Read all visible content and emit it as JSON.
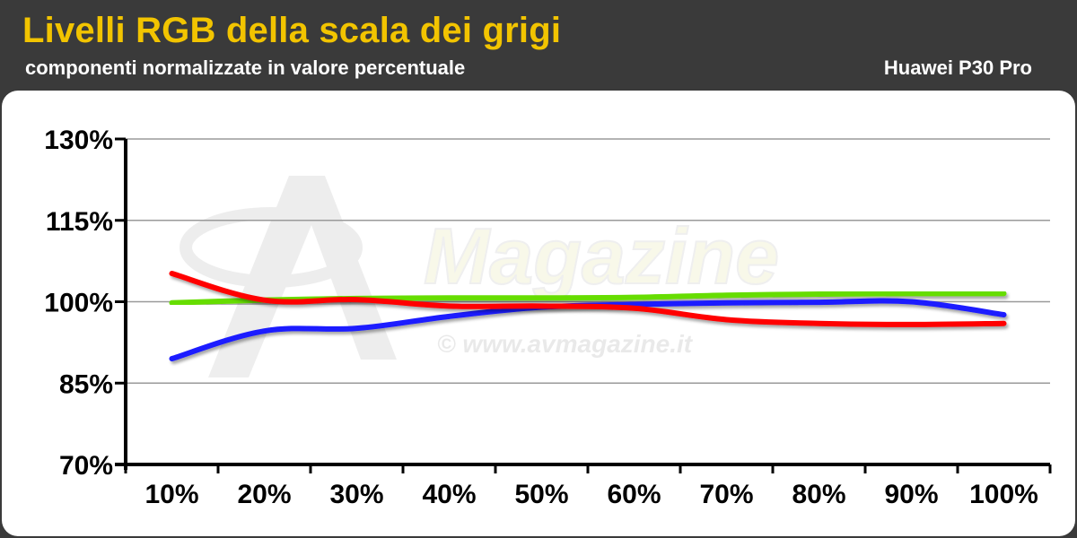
{
  "header": {
    "title": "Livelli RGB della scala dei grigi",
    "subtitle": "componenti normalizzate in valore percentuale",
    "device": "Huawei P30 Pro"
  },
  "watermark": {
    "brand": "Magazine",
    "url": "© www.avmagazine.it"
  },
  "colors": {
    "background": "#3a3a3a",
    "title": "#f2c400",
    "panel": "#ffffff",
    "grid": "#9a9a9a",
    "red": "#ff0000",
    "green": "#66dd00",
    "blue": "#1a1aff"
  },
  "chart_data": {
    "type": "line",
    "title": "Livelli RGB della scala dei grigi",
    "subtitle": "componenti normalizzate in valore percentuale",
    "categories": [
      "10%",
      "20%",
      "30%",
      "40%",
      "50%",
      "60%",
      "70%",
      "80%",
      "90%",
      "100%"
    ],
    "yticks": [
      "130%",
      "115%",
      "100%",
      "85%",
      "70%"
    ],
    "ytick_values": [
      130,
      115,
      100,
      85,
      70
    ],
    "ylim": [
      70,
      130
    ],
    "grid": true,
    "legend": "none",
    "series": [
      {
        "color": "#66dd00",
        "values": [
          99.8,
          100.3,
          100.6,
          100.7,
          100.7,
          100.8,
          101.2,
          101.4,
          101.5,
          101.5
        ]
      },
      {
        "color": "#1a1aff",
        "values": [
          89.5,
          94.6,
          95.1,
          97.3,
          99.0,
          99.5,
          99.8,
          99.9,
          100.0,
          97.6
        ]
      },
      {
        "color": "#ff0000",
        "values": [
          105.2,
          100.3,
          100.4,
          99.2,
          99.2,
          98.8,
          96.7,
          96.0,
          95.8,
          96.0
        ]
      }
    ]
  }
}
